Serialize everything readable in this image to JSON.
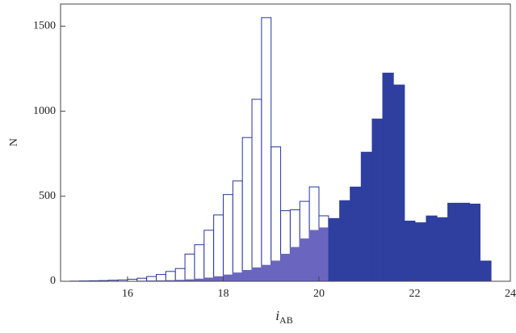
{
  "chart_data": {
    "type": "histogram",
    "x_label": {
      "text": "i",
      "subscript": "AB"
    },
    "y_label": "N",
    "xlim": [
      14.6,
      24
    ],
    "ylim": [
      0,
      1630
    ],
    "xticks": [
      16,
      18,
      20,
      22,
      24
    ],
    "yticks": [
      0,
      500,
      1000,
      1500
    ],
    "histograms": [
      {
        "style": "outline",
        "color": "#27349a",
        "bins": [
          14.8,
          15.0,
          15.2,
          15.4,
          15.6,
          15.8,
          16.0,
          16.2,
          16.4,
          16.6,
          16.8,
          17.0,
          17.2,
          17.4,
          17.6,
          17.8,
          18.0,
          18.2,
          18.4,
          18.6,
          18.8,
          19.0,
          19.2,
          19.4,
          19.6,
          19.8,
          20.0,
          20.2
        ],
        "values": [
          1,
          2,
          3,
          4,
          6,
          8,
          12,
          18,
          28,
          40,
          58,
          75,
          160,
          215,
          300,
          390,
          510,
          590,
          845,
          1070,
          1550,
          790,
          415,
          420,
          470,
          555,
          385
        ]
      },
      {
        "style": "filled",
        "color": "#6a66c0",
        "bins": [
          14.8,
          15.0,
          15.2,
          15.4,
          15.6,
          15.8,
          16.0,
          16.2,
          16.4,
          16.6,
          16.8,
          17.0,
          17.2,
          17.4,
          17.6,
          17.8,
          18.0,
          18.2,
          18.4,
          18.6,
          18.8,
          19.0,
          19.2,
          19.4,
          19.6,
          19.8,
          20.0,
          20.2
        ],
        "values": [
          0,
          0,
          0,
          0,
          0,
          1,
          1,
          2,
          3,
          4,
          5,
          7,
          10,
          14,
          20,
          28,
          38,
          50,
          65,
          80,
          95,
          120,
          160,
          200,
          250,
          300,
          315
        ]
      },
      {
        "style": "filled",
        "color": "#2f3fa0",
        "bins": [
          20.2,
          20.43,
          20.65,
          20.88,
          21.11,
          21.33,
          21.56,
          21.79,
          22.01,
          22.24,
          22.47,
          22.69,
          22.92,
          23.15,
          23.37,
          23.6
        ],
        "values": [
          370,
          475,
          555,
          760,
          955,
          1225,
          1155,
          355,
          345,
          385,
          375,
          460,
          460,
          455,
          120
        ]
      }
    ]
  }
}
